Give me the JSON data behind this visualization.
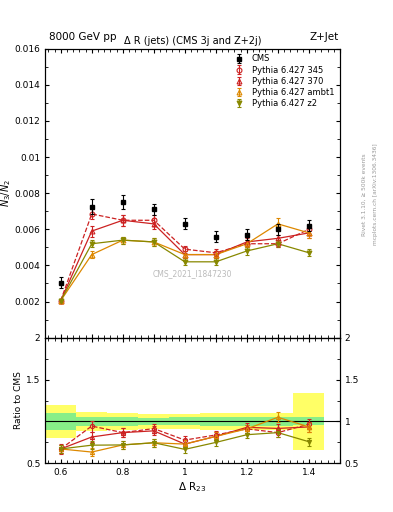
{
  "title_top": "8000 GeV pp",
  "title_right": "Z+Jet",
  "plot_title": "Δ R (jets) (CMS 3j and Z+2j)",
  "ylabel_main": "$N_3 / N_2$",
  "ylabel_ratio": "Ratio to CMS",
  "xlabel": "Δ R$_{23}$",
  "watermark": "CMS_2021_I1847230",
  "rivet_label": "Rivet 3.1.10, ≥ 500k events",
  "mcplots_label": "mcplots.cern.ch [arXiv:1306.3436]",
  "cms_x": [
    0.6,
    0.7,
    0.8,
    0.9,
    1.0,
    1.1,
    1.2,
    1.3,
    1.4
  ],
  "cms_y": [
    0.00305,
    0.00725,
    0.0075,
    0.0071,
    0.0063,
    0.0056,
    0.0057,
    0.006,
    0.0062
  ],
  "cms_yerr": [
    0.0003,
    0.0004,
    0.0004,
    0.0003,
    0.0003,
    0.0003,
    0.0003,
    0.0003,
    0.0003
  ],
  "p345_x": [
    0.6,
    0.7,
    0.8,
    0.9,
    1.0,
    1.1,
    1.2,
    1.3,
    1.4
  ],
  "p345_y": [
    0.00205,
    0.00685,
    0.0065,
    0.0065,
    0.0049,
    0.0047,
    0.0052,
    0.0052,
    0.006
  ],
  "p345_yerr": [
    0.0001,
    0.0003,
    0.0003,
    0.0003,
    0.0002,
    0.0002,
    0.0002,
    0.0002,
    0.0003
  ],
  "p370_x": [
    0.6,
    0.7,
    0.8,
    0.9,
    1.0,
    1.1,
    1.2,
    1.3,
    1.4
  ],
  "p370_y": [
    0.00205,
    0.0059,
    0.0065,
    0.0063,
    0.0046,
    0.0046,
    0.0053,
    0.0055,
    0.0058
  ],
  "p370_yerr": [
    0.0001,
    0.0003,
    0.0003,
    0.0003,
    0.0002,
    0.0002,
    0.0002,
    0.0002,
    0.0003
  ],
  "pambt_x": [
    0.6,
    0.7,
    0.8,
    0.9,
    1.0,
    1.1,
    1.2,
    1.3,
    1.4
  ],
  "pambt_y": [
    0.00205,
    0.0046,
    0.0054,
    0.0053,
    0.0046,
    0.0046,
    0.0052,
    0.0063,
    0.0058
  ],
  "pambt_yerr": [
    0.0001,
    0.0002,
    0.0002,
    0.0002,
    0.0002,
    0.0002,
    0.0002,
    0.0003,
    0.0003
  ],
  "pz2_x": [
    0.6,
    0.7,
    0.8,
    0.9,
    1.0,
    1.1,
    1.2,
    1.3,
    1.4
  ],
  "pz2_y": [
    0.00205,
    0.0052,
    0.0054,
    0.0053,
    0.0042,
    0.0042,
    0.0048,
    0.0052,
    0.0047
  ],
  "pz2_yerr": [
    0.0001,
    0.0002,
    0.0002,
    0.0002,
    0.0002,
    0.0002,
    0.0002,
    0.0002,
    0.0002
  ],
  "ratio_p345_y": [
    0.672,
    0.945,
    0.867,
    0.915,
    0.778,
    0.839,
    0.912,
    0.867,
    0.968
  ],
  "ratio_p345_err": [
    0.055,
    0.065,
    0.058,
    0.058,
    0.047,
    0.048,
    0.05,
    0.048,
    0.06
  ],
  "ratio_p370_y": [
    0.672,
    0.815,
    0.867,
    0.888,
    0.73,
    0.822,
    0.93,
    0.917,
    0.935
  ],
  "ratio_p370_err": [
    0.05,
    0.055,
    0.055,
    0.055,
    0.045,
    0.048,
    0.048,
    0.048,
    0.055
  ],
  "ratio_pambt_y": [
    0.672,
    0.635,
    0.72,
    0.746,
    0.73,
    0.822,
    0.912,
    1.05,
    0.935
  ],
  "ratio_pambt_err": [
    0.045,
    0.05,
    0.048,
    0.048,
    0.048,
    0.048,
    0.05,
    0.06,
    0.058
  ],
  "ratio_pz2_y": [
    0.672,
    0.717,
    0.72,
    0.746,
    0.667,
    0.75,
    0.842,
    0.867,
    0.758
  ],
  "ratio_pz2_err": [
    0.045,
    0.048,
    0.048,
    0.048,
    0.042,
    0.045,
    0.045,
    0.048,
    0.048
  ],
  "cms_band_x": [
    0.6,
    0.7,
    0.8,
    0.9,
    1.0,
    1.1,
    1.2,
    1.3,
    1.4
  ],
  "cms_band_half_w": [
    0.05,
    0.05,
    0.05,
    0.05,
    0.05,
    0.05,
    0.05,
    0.05,
    0.05
  ],
  "cms_band_green_half": [
    0.098,
    0.055,
    0.053,
    0.042,
    0.048,
    0.054,
    0.053,
    0.05,
    0.048
  ],
  "cms_band_yellow_half": [
    0.196,
    0.11,
    0.106,
    0.084,
    0.095,
    0.107,
    0.106,
    0.1,
    0.335
  ],
  "color_cms": "#000000",
  "color_p345": "#cc2222",
  "color_p370": "#cc2222",
  "color_pambt": "#dd8800",
  "color_pz2": "#888800",
  "ylim_main": [
    0,
    0.016
  ],
  "ylim_ratio": [
    0.5,
    2.0
  ],
  "xlim": [
    0.55,
    1.5
  ],
  "yticks_main": [
    0.002,
    0.004,
    0.006,
    0.008,
    0.01,
    0.012,
    0.014,
    0.016
  ],
  "yticks_ratio_left": [
    0.5,
    1.0,
    1.5,
    2.0
  ],
  "yticks_ratio_right": [
    0.5,
    1.0,
    1.5,
    2.0
  ],
  "ytick_labels_ratio_left": [
    "0.5",
    "",
    "1.5",
    "2"
  ],
  "ytick_labels_ratio_right": [
    "0.5",
    "1",
    "1.5",
    "2"
  ]
}
